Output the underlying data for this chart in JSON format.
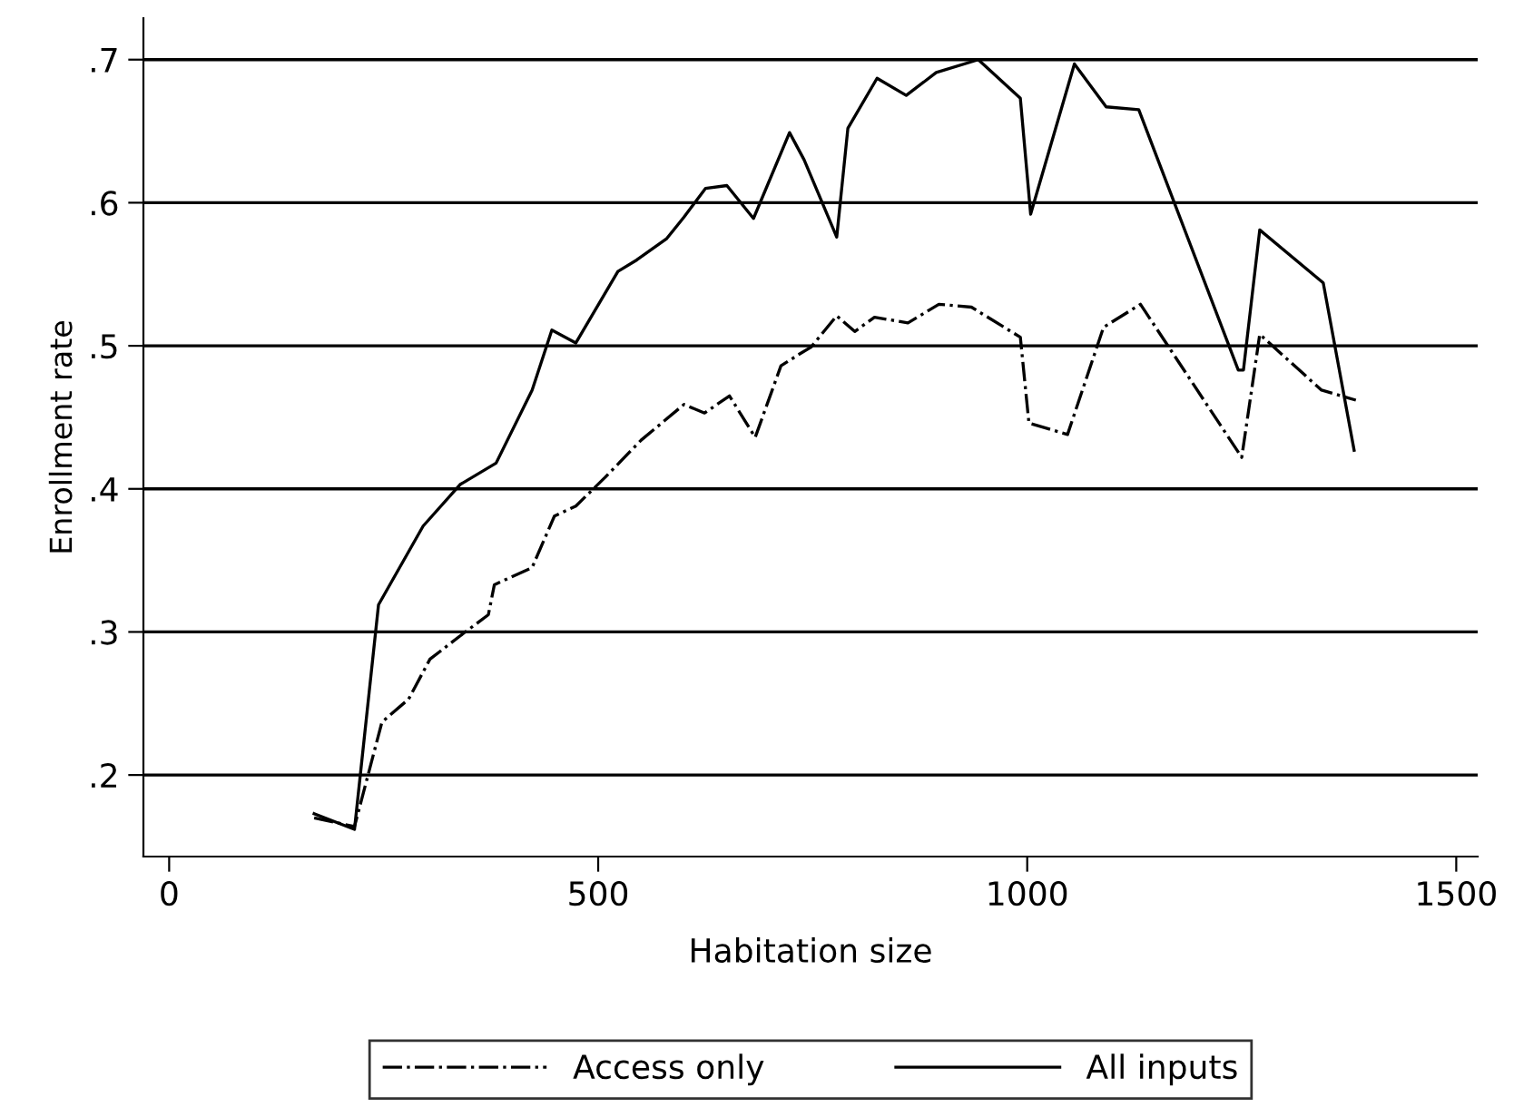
{
  "chart_data": {
    "type": "line",
    "xlabel": "Habitation size",
    "ylabel": "Enrollment rate",
    "xlim": [
      -30,
      1525
    ],
    "xticks": [
      0,
      500,
      1000,
      1500
    ],
    "ylim": [
      0.143,
      0.729
    ],
    "yticks": [
      {
        "value": 0.2,
        "label": ".2"
      },
      {
        "value": 0.3,
        "label": ".3"
      },
      {
        "value": 0.4,
        "label": ".4"
      },
      {
        "value": 0.5,
        "label": ".5"
      },
      {
        "value": 0.6,
        "label": ".6"
      },
      {
        "value": 0.7,
        "label": ".7"
      }
    ],
    "grid": "y",
    "legend": "bottom",
    "marker": "none",
    "series": [
      {
        "name": "Access only",
        "color": "#000000",
        "line_style": "dashdot",
        "x": [
          169,
          216,
          248,
          279,
          304,
          343,
          372,
          379,
          423,
          449,
          474,
          508,
          550,
          600,
          624,
          653,
          683,
          713,
          734,
          748,
          778,
          799,
          822,
          861,
          897,
          935,
          992,
          1002,
          1047,
          1089,
          1132,
          1250,
          1271,
          1343,
          1383
        ],
        "values": [
          0.17,
          0.164,
          0.237,
          0.253,
          0.281,
          0.299,
          0.312,
          0.333,
          0.345,
          0.381,
          0.388,
          0.408,
          0.434,
          0.459,
          0.453,
          0.465,
          0.436,
          0.486,
          0.494,
          0.499,
          0.521,
          0.51,
          0.52,
          0.516,
          0.529,
          0.527,
          0.506,
          0.446,
          0.438,
          0.513,
          0.529,
          0.422,
          0.508,
          0.469,
          0.462
        ]
      },
      {
        "name": "All inputs",
        "color": "#000000",
        "line_style": "solid",
        "x": [
          169,
          216,
          244,
          296,
          339,
          381,
          423,
          446,
          474,
          523,
          545,
          580,
          600,
          625,
          650,
          681,
          723,
          740,
          778,
          791,
          825,
          859,
          894,
          943,
          992,
          1004,
          1055,
          1092,
          1130,
          1246,
          1252,
          1271,
          1345,
          1381
        ],
        "values": [
          0.173,
          0.162,
          0.319,
          0.374,
          0.403,
          0.418,
          0.469,
          0.511,
          0.502,
          0.552,
          0.56,
          0.575,
          0.59,
          0.61,
          0.612,
          0.589,
          0.649,
          0.63,
          0.576,
          0.652,
          0.687,
          0.675,
          0.691,
          0.7,
          0.673,
          0.592,
          0.697,
          0.667,
          0.665,
          0.483,
          0.483,
          0.581,
          0.544,
          0.427
        ]
      }
    ]
  }
}
